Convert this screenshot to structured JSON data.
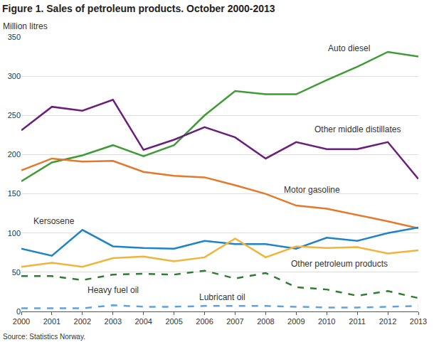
{
  "chart_data": {
    "type": "line",
    "title": "Figure 1. Sales of petroleum products. October 2000-2013",
    "y_label": "Million litres",
    "source": "Source: Statistics Norway.",
    "x": [
      2000,
      2001,
      2002,
      2003,
      2004,
      2005,
      2006,
      2007,
      2008,
      2009,
      2010,
      2011,
      2012,
      2013
    ],
    "xlim": [
      2000,
      2013
    ],
    "xticks": [
      2000,
      2001,
      2002,
      2003,
      2004,
      2005,
      2006,
      2007,
      2008,
      2009,
      2010,
      2011,
      2012,
      2013
    ],
    "ylim": [
      0,
      350
    ],
    "yticks": [
      0,
      50,
      100,
      150,
      200,
      250,
      300,
      350
    ],
    "grid": true,
    "series": [
      {
        "name": "Auto diesel",
        "color": "#3f9c35",
        "line_style": "solid",
        "values": [
          166,
          190,
          199,
          212,
          198,
          212,
          250,
          281,
          277,
          277,
          295,
          312,
          331,
          325
        ]
      },
      {
        "name": "Other middle distillates",
        "color": "#6b1f7c",
        "line_style": "solid",
        "values": [
          231,
          261,
          256,
          270,
          206,
          219,
          235,
          222,
          195,
          216,
          207,
          207,
          216,
          169
        ]
      },
      {
        "name": "Motor gasoline",
        "color": "#e4782b",
        "line_style": "solid",
        "values": [
          180,
          195,
          191,
          192,
          178,
          173,
          171,
          161,
          150,
          135,
          131,
          123,
          115,
          106
        ]
      },
      {
        "name": "Kersosene",
        "color": "#1e84c6",
        "line_style": "solid",
        "values": [
          80,
          71,
          104,
          83,
          81,
          80,
          90,
          86,
          86,
          80,
          94,
          90,
          100,
          107
        ]
      },
      {
        "name": "Other petroleum products",
        "color": "#f1b43a",
        "line_style": "solid",
        "values": [
          57,
          62,
          57,
          68,
          70,
          64,
          69,
          93,
          69,
          83,
          81,
          82,
          74,
          78
        ]
      },
      {
        "name": "Heavy fuel oil",
        "color": "#2f7d32",
        "line_style": "dash",
        "values": [
          45,
          45,
          40,
          47,
          48,
          47,
          52,
          42,
          49,
          31,
          28,
          20,
          26,
          17
        ]
      },
      {
        "name": "Lubricant oil",
        "color": "#5fa3dc",
        "line_style": "dash",
        "values": [
          4,
          4,
          4,
          8,
          6,
          6,
          7,
          7,
          7,
          6,
          5,
          5,
          6,
          7
        ]
      }
    ]
  }
}
